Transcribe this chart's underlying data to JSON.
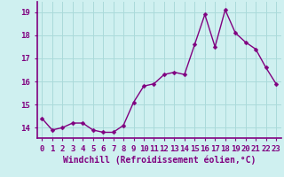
{
  "x": [
    0,
    1,
    2,
    3,
    4,
    5,
    6,
    7,
    8,
    9,
    10,
    11,
    12,
    13,
    14,
    15,
    16,
    17,
    18,
    19,
    20,
    21,
    22,
    23
  ],
  "y": [
    14.4,
    13.9,
    14.0,
    14.2,
    14.2,
    13.9,
    13.8,
    13.8,
    14.1,
    15.1,
    15.8,
    15.9,
    16.3,
    16.4,
    16.3,
    17.6,
    18.9,
    17.5,
    19.1,
    18.1,
    17.7,
    17.4,
    16.6,
    15.9
  ],
  "line_color": "#800080",
  "marker": "D",
  "marker_size": 2.5,
  "bg_color": "#cff0f0",
  "grid_color": "#aadada",
  "xlabel": "Windchill (Refroidissement éolien,°C)",
  "yticks": [
    14,
    15,
    16,
    17,
    18,
    19
  ],
  "xticks": [
    0,
    1,
    2,
    3,
    4,
    5,
    6,
    7,
    8,
    9,
    10,
    11,
    12,
    13,
    14,
    15,
    16,
    17,
    18,
    19,
    20,
    21,
    22,
    23
  ],
  "xlim": [
    -0.5,
    23.5
  ],
  "ylim": [
    13.55,
    19.45
  ],
  "xlabel_fontsize": 7,
  "tick_fontsize": 6.5,
  "line_width": 1.0,
  "spine_color": "#800080"
}
